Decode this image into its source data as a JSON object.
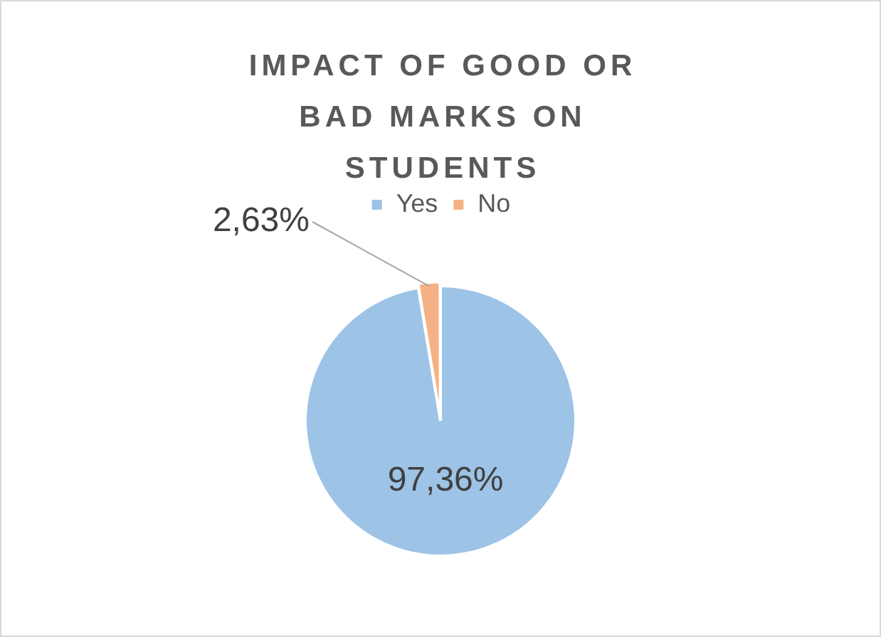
{
  "chart_data": {
    "type": "pie",
    "title": "IMPACT OF GOOD OR BAD MARKS ON STUDENTS",
    "categories": [
      "Yes",
      "No"
    ],
    "values": [
      97.36,
      2.63
    ],
    "value_labels": [
      "97,36%",
      "2,63%"
    ],
    "colors": [
      "#9dc3e6",
      "#f4b183"
    ],
    "legend": "top"
  }
}
